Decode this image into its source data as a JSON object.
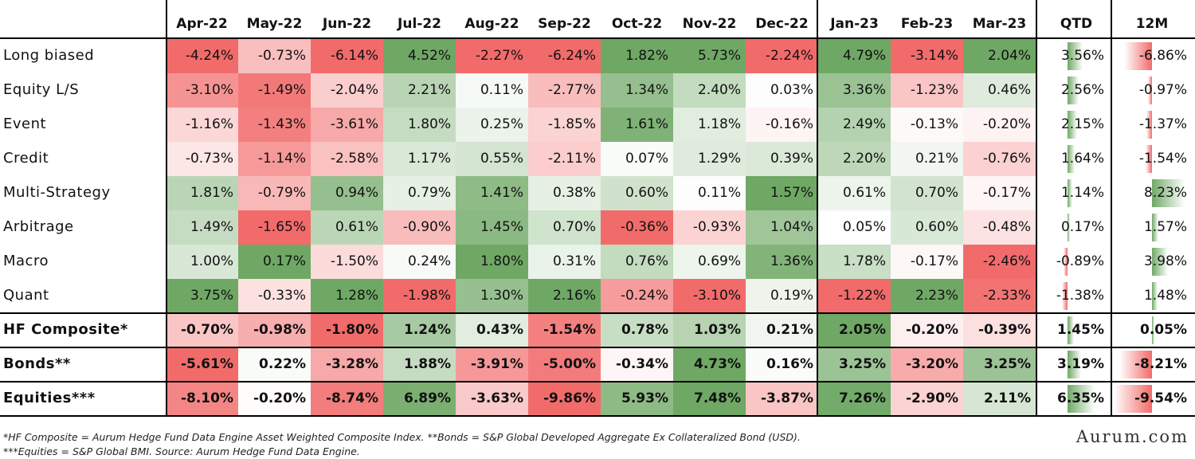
{
  "columns": [
    "Apr-22",
    "May-22",
    "Jun-22",
    "Jul-22",
    "Aug-22",
    "Sep-22",
    "Oct-22",
    "Nov-22",
    "Dec-22",
    "Jan-23",
    "Feb-23",
    "Mar-23"
  ],
  "summary_columns": [
    "QTD",
    "12M"
  ],
  "rows": [
    {
      "name": "Long biased",
      "bold": false,
      "values": [
        -4.24,
        -0.73,
        -6.14,
        4.52,
        -2.27,
        -6.24,
        1.82,
        5.73,
        -2.24,
        4.79,
        -3.14,
        2.04
      ],
      "qtd": 3.56,
      "m12": -6.86,
      "labels": [
        "-4.24%",
        "-0.73%",
        "-6.14%",
        "4.52%",
        "-2.27%",
        "-6.24%",
        "1.82%",
        "5.73%",
        "-2.24%",
        "4.79%",
        "-3.14%",
        "2.04%"
      ],
      "qtd_label": "3.56%",
      "m12_label": "-6.86%"
    },
    {
      "name": "Equity L/S",
      "bold": false,
      "values": [
        -3.1,
        -1.49,
        -2.04,
        2.21,
        0.11,
        -2.77,
        1.34,
        2.4,
        0.03,
        3.36,
        -1.23,
        0.46
      ],
      "qtd": 2.56,
      "m12": -0.97,
      "labels": [
        "-3.10%",
        "-1.49%",
        "-2.04%",
        "2.21%",
        "0.11%",
        "-2.77%",
        "1.34%",
        "2.40%",
        "0.03%",
        "3.36%",
        "-1.23%",
        "0.46%"
      ],
      "qtd_label": "2.56%",
      "m12_label": "-0.97%"
    },
    {
      "name": "Event",
      "bold": false,
      "values": [
        -1.16,
        -1.43,
        -3.61,
        1.8,
        0.25,
        -1.85,
        1.61,
        1.18,
        -0.16,
        2.49,
        -0.13,
        -0.2
      ],
      "qtd": 2.15,
      "m12": -1.37,
      "labels": [
        "-1.16%",
        "-1.43%",
        "-3.61%",
        "1.80%",
        "0.25%",
        "-1.85%",
        "1.61%",
        "1.18%",
        "-0.16%",
        "2.49%",
        "-0.13%",
        "-0.20%"
      ],
      "qtd_label": "2.15%",
      "m12_label": "-1.37%"
    },
    {
      "name": "Credit",
      "bold": false,
      "values": [
        -0.73,
        -1.14,
        -2.58,
        1.17,
        0.55,
        -2.11,
        0.07,
        1.29,
        0.39,
        2.2,
        0.21,
        -0.76
      ],
      "qtd": 1.64,
      "m12": -1.54,
      "labels": [
        "-0.73%",
        "-1.14%",
        "-2.58%",
        "1.17%",
        "0.55%",
        "-2.11%",
        "0.07%",
        "1.29%",
        "0.39%",
        "2.20%",
        "0.21%",
        "-0.76%"
      ],
      "qtd_label": "1.64%",
      "m12_label": "-1.54%"
    },
    {
      "name": "Multi-Strategy",
      "bold": false,
      "values": [
        1.81,
        -0.79,
        0.94,
        0.79,
        1.41,
        0.38,
        0.6,
        0.11,
        1.57,
        0.61,
        0.7,
        -0.17
      ],
      "qtd": 1.14,
      "m12": 8.23,
      "labels": [
        "1.81%",
        "-0.79%",
        "0.94%",
        "0.79%",
        "1.41%",
        "0.38%",
        "0.60%",
        "0.11%",
        "1.57%",
        "0.61%",
        "0.70%",
        "-0.17%"
      ],
      "qtd_label": "1.14%",
      "m12_label": "8.23%"
    },
    {
      "name": "Arbitrage",
      "bold": false,
      "values": [
        1.49,
        -1.65,
        0.61,
        -0.9,
        1.45,
        0.7,
        -0.36,
        -0.93,
        1.04,
        0.05,
        0.6,
        -0.48
      ],
      "qtd": 0.17,
      "m12": 1.57,
      "labels": [
        "1.49%",
        "-1.65%",
        "0.61%",
        "-0.90%",
        "1.45%",
        "0.70%",
        "-0.36%",
        "-0.93%",
        "1.04%",
        "0.05%",
        "0.60%",
        "-0.48%"
      ],
      "qtd_label": "0.17%",
      "m12_label": "1.57%"
    },
    {
      "name": "Macro",
      "bold": false,
      "values": [
        1.0,
        0.17,
        -1.5,
        0.24,
        1.8,
        0.31,
        0.76,
        0.69,
        1.36,
        1.78,
        -0.17,
        -2.46
      ],
      "qtd": -0.89,
      "m12": 3.98,
      "labels": [
        "1.00%",
        "0.17%",
        "-1.50%",
        "0.24%",
        "1.80%",
        "0.31%",
        "0.76%",
        "0.69%",
        "1.36%",
        "1.78%",
        "-0.17%",
        "-2.46%"
      ],
      "qtd_label": "-0.89%",
      "m12_label": "3.98%"
    },
    {
      "name": "Quant",
      "bold": false,
      "values": [
        3.75,
        -0.33,
        1.28,
        -1.98,
        1.3,
        2.16,
        -0.24,
        -3.1,
        0.19,
        -1.22,
        2.23,
        -2.33
      ],
      "qtd": -1.38,
      "m12": 1.48,
      "labels": [
        "3.75%",
        "-0.33%",
        "1.28%",
        "-1.98%",
        "1.30%",
        "2.16%",
        "-0.24%",
        "-3.10%",
        "0.19%",
        "-1.22%",
        "2.23%",
        "-2.33%"
      ],
      "qtd_label": "-1.38%",
      "m12_label": "1.48%"
    },
    {
      "name": "HF Composite*",
      "bold": true,
      "values": [
        -0.7,
        -0.98,
        -1.8,
        1.24,
        0.43,
        -1.54,
        0.78,
        1.03,
        0.21,
        2.05,
        -0.2,
        -0.39
      ],
      "qtd": 1.45,
      "m12": 0.05,
      "labels": [
        "-0.70%",
        "-0.98%",
        "-1.80%",
        "1.24%",
        "0.43%",
        "-1.54%",
        "0.78%",
        "1.03%",
        "0.21%",
        "2.05%",
        "-0.20%",
        "-0.39%"
      ],
      "qtd_label": "1.45%",
      "m12_label": "0.05%"
    },
    {
      "name": "Bonds**",
      "bold": true,
      "values": [
        -5.61,
        0.22,
        -3.28,
        1.88,
        -3.91,
        -5.0,
        -0.34,
        4.73,
        0.16,
        3.25,
        -3.2,
        3.25
      ],
      "qtd": 3.19,
      "m12": -8.21,
      "labels": [
        "-5.61%",
        "0.22%",
        "-3.28%",
        "1.88%",
        "-3.91%",
        "-5.00%",
        "-0.34%",
        "4.73%",
        "0.16%",
        "3.25%",
        "-3.20%",
        "3.25%"
      ],
      "qtd_label": "3.19%",
      "m12_label": "-8.21%"
    },
    {
      "name": "Equities***",
      "bold": true,
      "values": [
        -8.1,
        -0.2,
        -8.74,
        6.89,
        -3.63,
        -9.86,
        5.93,
        7.48,
        -3.87,
        7.26,
        -2.9,
        2.11
      ],
      "qtd": 6.35,
      "m12": -9.54,
      "labels": [
        "-8.10%",
        "-0.20%",
        "-8.74%",
        "6.89%",
        "-3.63%",
        "-9.86%",
        "5.93%",
        "7.48%",
        "-3.87%",
        "7.26%",
        "-2.90%",
        "2.11%"
      ],
      "qtd_label": "6.35%",
      "m12_label": "-9.54%"
    }
  ],
  "colors": {
    "negative": "#f26b6b",
    "positive": "#6fa865",
    "neutral": "#ffffff",
    "bar_pos": "#6fa865",
    "bar_neg": "#f26b6b"
  },
  "footnote_line1": "*HF Composite = Aurum Hedge Fund Data Engine Asset Weighted Composite Index. **Bonds = S&P Global Developed Aggregate Ex Collateralized Bond (USD).",
  "footnote_line2": "***Equities = S&P Global BMI. Source: Aurum Hedge Fund Data Engine.",
  "brand": "Aurum.com"
}
